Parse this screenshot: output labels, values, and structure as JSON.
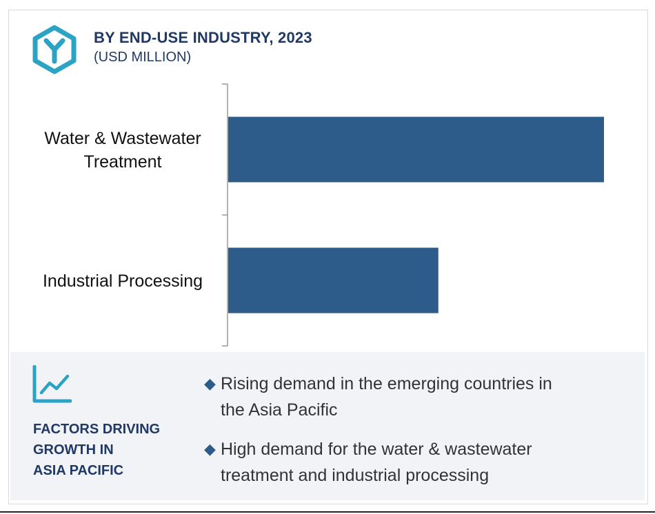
{
  "header": {
    "icon": "hexagon-y-logo-icon",
    "title": "BY END-USE INDUSTRY, 2023",
    "subtitle": "(USD MILLION)"
  },
  "chart_data": {
    "type": "bar",
    "orientation": "horizontal",
    "title": "BY END-USE INDUSTRY, 2023",
    "subtitle": "(USD MILLION)",
    "categories": [
      "Water & Wastewater Treatment",
      "Industrial Processing"
    ],
    "category_lines": [
      [
        "Water & Wastewater",
        "Treatment"
      ],
      [
        "Industrial Processing"
      ]
    ],
    "values": [
      100,
      56
    ],
    "xlim": [
      0,
      100
    ],
    "color": "#2d5b8a",
    "grid": false,
    "legend": "none",
    "value_labels_shown": false
  },
  "factors": {
    "icon": "trend-line-chart-icon",
    "title_lines": [
      "FACTORS DRIVING",
      "GROWTH IN",
      "ASIA PACIFIC"
    ],
    "bullets": [
      "Rising demand in the emerging countries in the Asia Pacific",
      "High demand for the water & wastewater treatment and industrial processing"
    ],
    "bullet_lines": [
      [
        "Rising demand in the emerging countries in",
        "the Asia Pacific"
      ],
      [
        "High demand for the water & wastewater",
        "treatment and industrial processing"
      ]
    ],
    "bullet_icon": "diamond-bullet-icon"
  },
  "colors": {
    "accent_teal": "#2aa3c4",
    "title_navy": "#1f3864",
    "bar": "#2d5b8a",
    "panel_bg": "#f1f3f7"
  }
}
